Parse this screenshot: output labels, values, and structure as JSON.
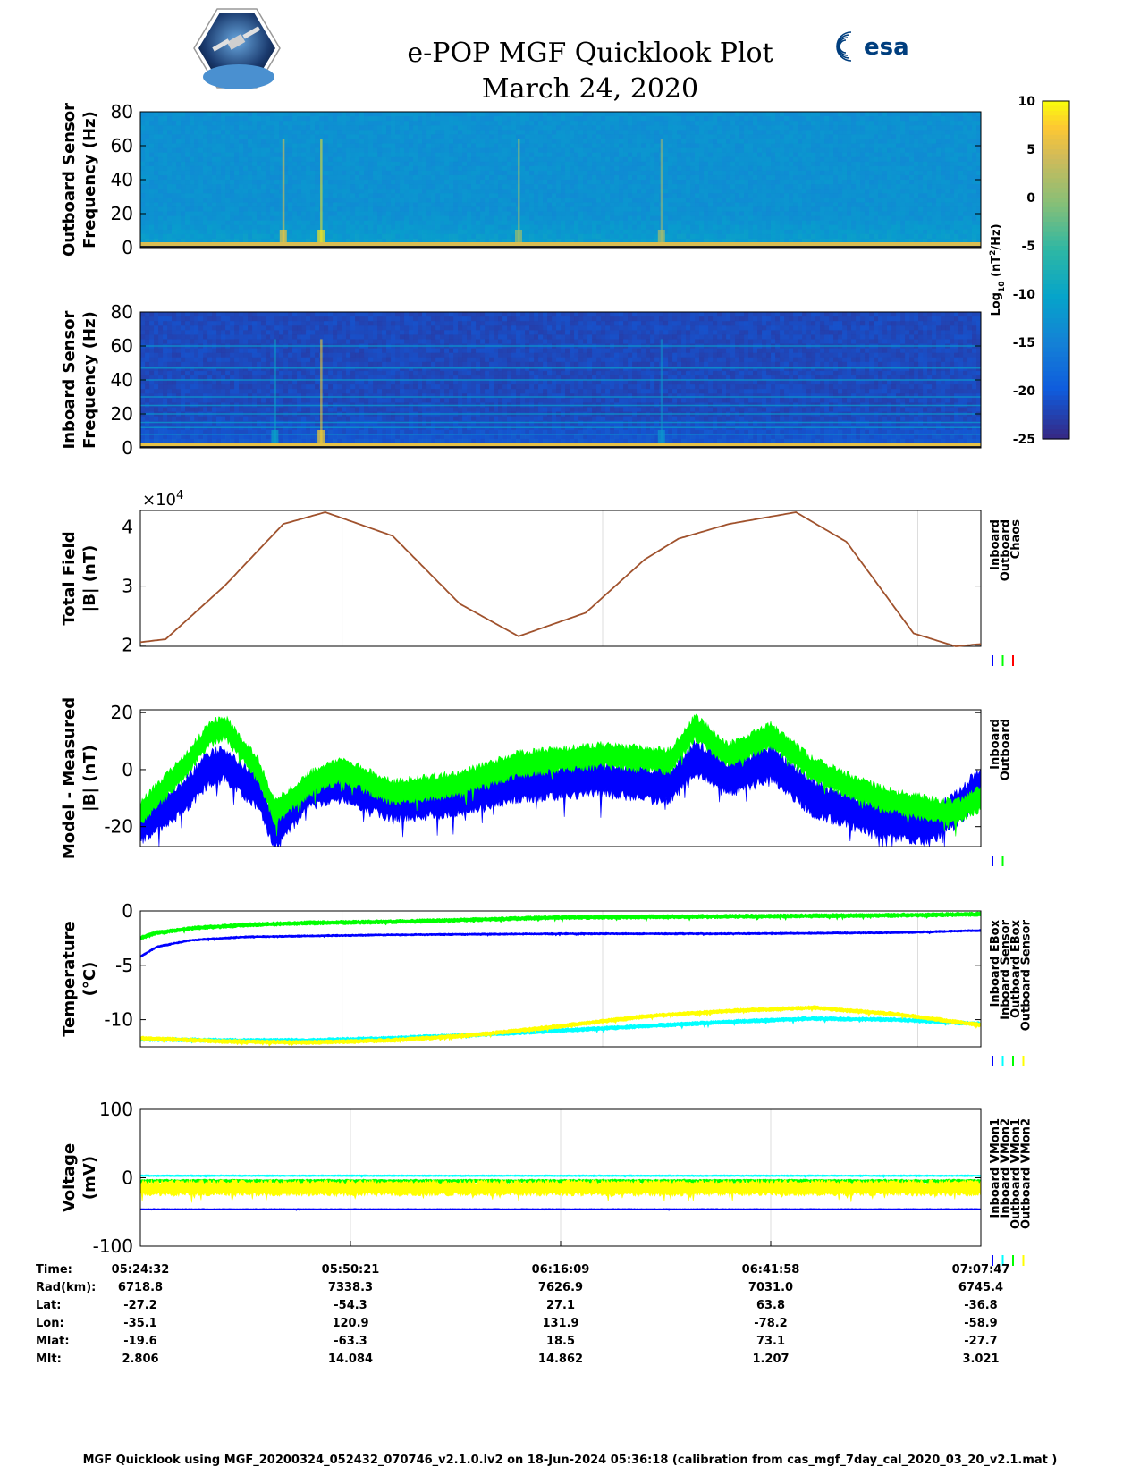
{
  "title": "e-POP MGF Quicklook Plot",
  "date": "March 24, 2020",
  "footer": "MGF Quicklook using MGF_20200324_052432_070746_v2.1.0.lv2 on 18-Jun-2024 05:36:18 (calibration from cas_mgf_7day_cal_2020_03_20_v2.1.mat )",
  "logos": {
    "left": "CASSIOPE mission patch",
    "right": "esa"
  },
  "colorbar": {
    "label_parts": [
      "Log",
      "10",
      " (nT",
      "2",
      "/Hz)"
    ],
    "ticks": [
      10,
      5,
      0,
      -5,
      -10,
      -15,
      -20,
      -25
    ],
    "range": [
      -25,
      10
    ],
    "colormap": "parula"
  },
  "colors": {
    "inboard": "#0000ff",
    "outboard": "#00ff00",
    "chaos": "#ff0000",
    "inboard_ebox": "#0000ff",
    "inboard_sensor": "#00ffff",
    "outboard_ebox": "#00ff00",
    "outboard_sensor": "#ffff00",
    "inboard_vmon1": "#0000ff",
    "inboard_vmon2": "#00ffff",
    "outboard_vmon1": "#00ff00",
    "outboard_vmon2": "#ffff00",
    "total_field_line": "#a0522d"
  },
  "ephemeris": {
    "labels": [
      "Time:",
      "Rad(km):",
      "Lat:",
      "Lon:",
      "Mlat:",
      "Mlt:"
    ],
    "columns": [
      [
        "05:24:32",
        "6718.8",
        "-27.2",
        "-35.1",
        "-19.6",
        "2.806"
      ],
      [
        "05:50:21",
        "7338.3",
        "-54.3",
        "120.9",
        "-63.3",
        "14.084"
      ],
      [
        "06:16:09",
        "7626.9",
        "27.1",
        "131.9",
        "18.5",
        "14.862"
      ],
      [
        "06:41:58",
        "7031.0",
        "63.8",
        "-78.2",
        "73.1",
        "1.207"
      ],
      [
        "07:07:47",
        "6745.4",
        "-36.8",
        "-58.9",
        "-27.7",
        "3.021"
      ]
    ]
  },
  "chart_data": [
    {
      "type": "heatmap",
      "ylabel": [
        "Outboard Sensor",
        "Frequency (Hz)"
      ],
      "ylim": [
        0,
        80
      ],
      "yticks": [
        80,
        60,
        40,
        20,
        0
      ],
      "background_level": -13,
      "band_level": 5,
      "bursts": [
        {
          "t": 0.17,
          "level": 7
        },
        {
          "t": 0.215,
          "level": 9
        },
        {
          "t": 0.45,
          "level": 1
        },
        {
          "t": 0.62,
          "level": 2
        }
      ]
    },
    {
      "type": "heatmap",
      "ylabel": [
        "Inboard Sensor",
        "Frequency (Hz)"
      ],
      "ylim": [
        0,
        80
      ],
      "yticks": [
        80,
        60,
        40,
        20,
        0
      ],
      "background_level": -22,
      "band_level": 6,
      "lines_hz": [
        8,
        12,
        15,
        20,
        25,
        30,
        40,
        47,
        60
      ],
      "bursts": [
        {
          "t": 0.16,
          "level": -10
        },
        {
          "t": 0.215,
          "level": 8
        },
        {
          "t": 0.62,
          "level": -12
        }
      ]
    },
    {
      "type": "line",
      "ylabel": [
        "Total Field",
        "|B| (nT)"
      ],
      "exponent_label": "×10",
      "exponent": "4",
      "ylim": [
        1.98,
        4.28
      ],
      "yticks": [
        4,
        3,
        2
      ],
      "legend": [
        "Inboard",
        "Outboard",
        "Chaos"
      ],
      "series": [
        {
          "x": [
            0,
            0.03,
            0.1,
            0.17,
            0.22,
            0.3,
            0.38,
            0.45,
            0.53,
            0.6,
            0.64,
            0.7,
            0.78,
            0.84,
            0.92,
            0.97,
            1.0
          ],
          "y": [
            2.05,
            2.1,
            3.0,
            4.05,
            4.25,
            3.85,
            2.7,
            2.15,
            2.55,
            3.45,
            3.8,
            4.05,
            4.25,
            3.75,
            2.2,
            1.98,
            2.02
          ]
        }
      ]
    },
    {
      "type": "line",
      "ylabel": [
        "Model - Measured",
        "|B| (nT)"
      ],
      "ylim": [
        -27,
        21
      ],
      "yticks": [
        20,
        0,
        -20
      ],
      "legend": [
        "Inboard",
        "Outboard"
      ],
      "series": [
        {
          "name": "Inboard",
          "x": [
            0,
            0.05,
            0.08,
            0.1,
            0.14,
            0.16,
            0.2,
            0.24,
            0.3,
            0.38,
            0.45,
            0.55,
            0.63,
            0.66,
            0.7,
            0.75,
            0.8,
            0.88,
            0.94,
            0.97,
            1.0
          ],
          "y": [
            -20,
            -10,
            0,
            2,
            -8,
            -22,
            -8,
            -5,
            -12,
            -10,
            -5,
            -3,
            -6,
            4,
            -3,
            2,
            -10,
            -18,
            -20,
            -14,
            -5
          ],
          "spread": 7
        },
        {
          "name": "Outboard",
          "x": [
            0,
            0.05,
            0.08,
            0.1,
            0.14,
            0.16,
            0.2,
            0.24,
            0.3,
            0.38,
            0.45,
            0.55,
            0.63,
            0.66,
            0.7,
            0.75,
            0.8,
            0.88,
            0.94,
            0.97,
            1.0
          ],
          "y": [
            -15,
            0,
            12,
            15,
            0,
            -15,
            -5,
            0,
            -8,
            -5,
            2,
            5,
            3,
            15,
            5,
            12,
            0,
            -10,
            -14,
            -15,
            -10
          ],
          "spread": 5
        }
      ]
    },
    {
      "type": "line",
      "ylabel": [
        "Temperature",
        "(°C)"
      ],
      "ylim": [
        -12.5,
        0
      ],
      "yticks": [
        0,
        -5,
        -10
      ],
      "legend": [
        "Inboard EBox",
        "Inboard Sensor",
        "Outboard EBox",
        "Outboard Sensor"
      ],
      "series": [
        {
          "name": "Inboard EBox",
          "x": [
            0,
            0.02,
            0.06,
            0.12,
            0.2,
            0.3,
            0.5,
            0.7,
            0.9,
            1.0
          ],
          "y": [
            -4.2,
            -3.3,
            -2.7,
            -2.4,
            -2.3,
            -2.2,
            -2.1,
            -2.1,
            -2.0,
            -1.8
          ]
        },
        {
          "name": "Inboard Sensor",
          "x": [
            0,
            0.1,
            0.2,
            0.3,
            0.4,
            0.5,
            0.6,
            0.7,
            0.8,
            0.9,
            1.0
          ],
          "y": [
            -11.8,
            -11.9,
            -11.9,
            -11.7,
            -11.4,
            -11.0,
            -10.6,
            -10.2,
            -9.9,
            -10.0,
            -10.4
          ]
        },
        {
          "name": "Outboard EBox",
          "x": [
            0,
            0.02,
            0.06,
            0.12,
            0.2,
            0.3,
            0.5,
            0.7,
            0.9,
            1.0
          ],
          "y": [
            -2.5,
            -2.0,
            -1.6,
            -1.3,
            -1.1,
            -1.0,
            -0.6,
            -0.5,
            -0.4,
            -0.3
          ]
        },
        {
          "name": "Outboard Sensor",
          "x": [
            0,
            0.1,
            0.2,
            0.3,
            0.4,
            0.5,
            0.6,
            0.7,
            0.8,
            0.9,
            1.0
          ],
          "y": [
            -11.7,
            -12.0,
            -12.1,
            -11.9,
            -11.4,
            -10.6,
            -9.7,
            -9.2,
            -8.9,
            -9.5,
            -10.5
          ]
        }
      ]
    },
    {
      "type": "line",
      "ylabel": [
        "Voltage",
        "(mV)"
      ],
      "ylim": [
        -100,
        100
      ],
      "yticks": [
        100,
        0,
        -100
      ],
      "legend": [
        "Inboard VMon1",
        "Inboard VMon2",
        "Outboard VMon1",
        "Outboard VMon2"
      ],
      "series": [
        {
          "name": "Inboard VMon1",
          "x": [
            0,
            1
          ],
          "y": [
            -46,
            -46
          ]
        },
        {
          "name": "Inboard VMon2",
          "x": [
            0,
            1
          ],
          "y": [
            3,
            3
          ]
        },
        {
          "name": "Outboard VMon1",
          "x": [
            0,
            1
          ],
          "y": [
            -5,
            -5
          ]
        },
        {
          "name": "Outboard VMon2",
          "x": [
            0,
            1
          ],
          "y": [
            -15,
            -15
          ],
          "spread": 12
        }
      ]
    }
  ]
}
